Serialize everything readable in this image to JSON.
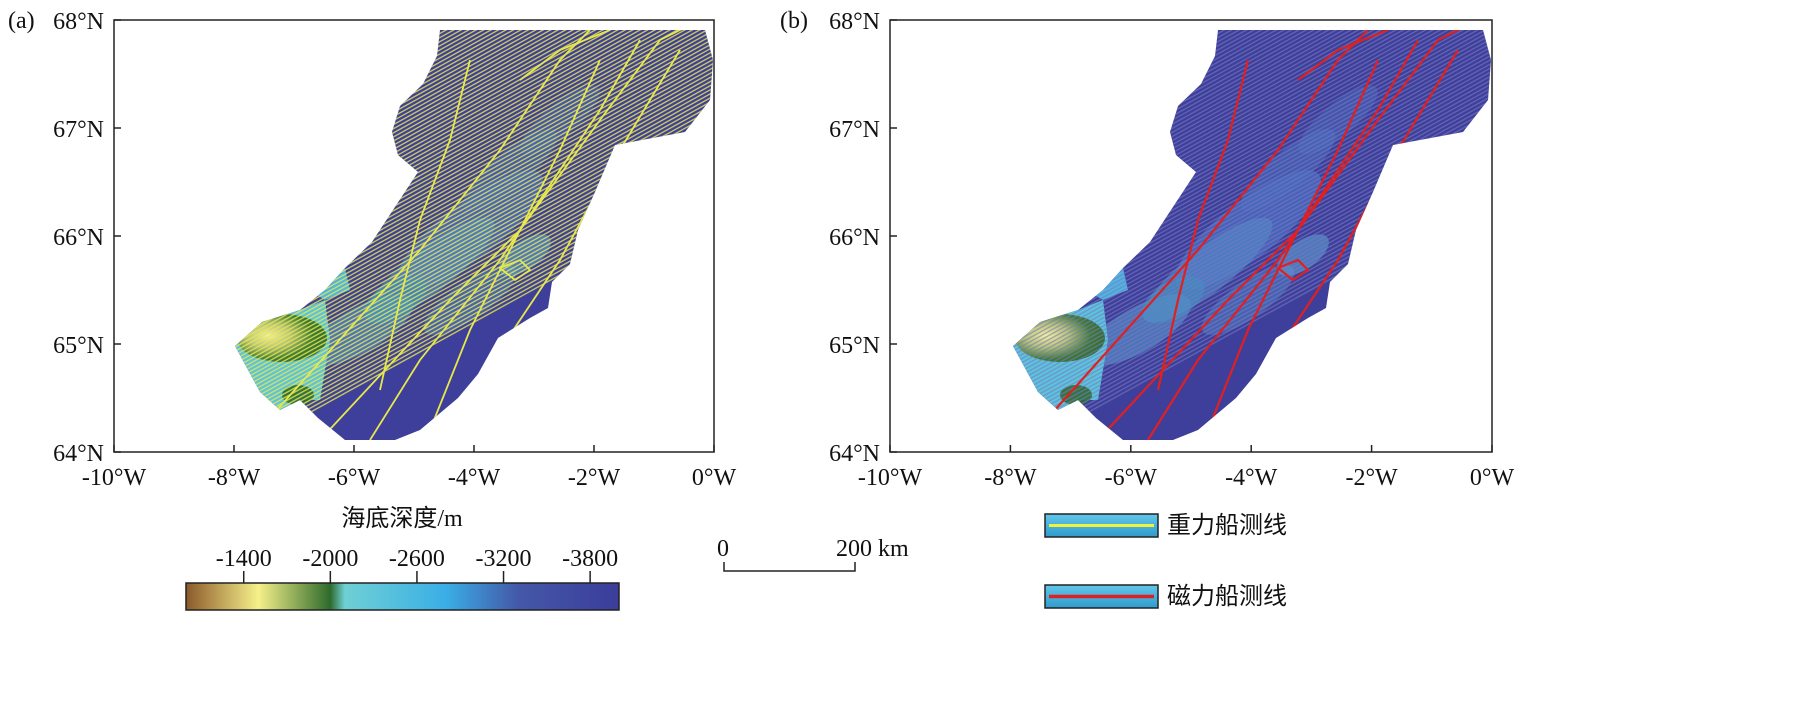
{
  "panels": [
    {
      "label": "(a)",
      "lat_ticks": [
        "68°N",
        "67°N",
        "66°N",
        "65°N",
        "64°N"
      ],
      "lon_ticks": [
        "-10°W",
        "-8°W",
        "-6°W",
        "-4°W",
        "-2°W",
        "0°W"
      ],
      "line_type": "gravity"
    },
    {
      "label": "(b)",
      "lat_ticks": [
        "68°N",
        "67°N",
        "66°N",
        "65°N",
        "64°N"
      ],
      "lon_ticks": [
        "-10°W",
        "-8°W",
        "-6°W",
        "-4°W",
        "-2°W",
        "0°W"
      ],
      "line_type": "magnetic"
    }
  ],
  "colorbar": {
    "title": "海底深度/m",
    "ticks": [
      "-1400",
      "-2000",
      "-2600",
      "-3200",
      "-3800"
    ],
    "tick_values": [
      -1400,
      -2000,
      -2600,
      -3200,
      -3800
    ],
    "range": [
      -1000,
      -4000
    ],
    "stops": [
      {
        "value": -1000,
        "color": "#8b5a2b"
      },
      {
        "value": -1500,
        "color": "#f6f08a"
      },
      {
        "value": -2000,
        "color": "#2e6b2c"
      },
      {
        "value": -2100,
        "color": "#6fd0d4"
      },
      {
        "value": -2800,
        "color": "#3aaee6"
      },
      {
        "value": -3300,
        "color": "#4458a8"
      },
      {
        "value": -4000,
        "color": "#3b3d9a"
      }
    ]
  },
  "scale_bar": {
    "start_label": "0",
    "end_label": "200 km"
  },
  "legend": [
    {
      "label": "重力船测线",
      "line_color": "#f2f23a",
      "fill": "#3fb3dd"
    },
    {
      "label": "磁力船测线",
      "line_color": "#e02020",
      "fill": "#3fb3dd"
    }
  ],
  "colors": {
    "deep": "#3d3f9b",
    "gravity_line": "#e8e84a",
    "magnetic_line": "#e02020"
  }
}
